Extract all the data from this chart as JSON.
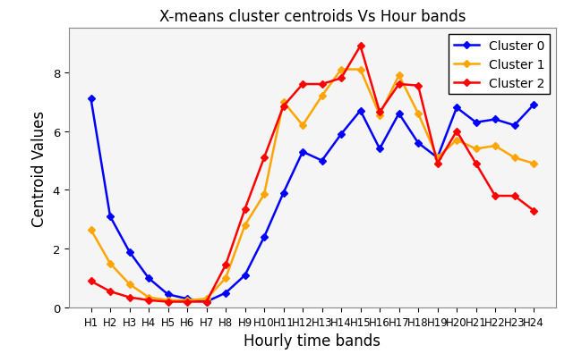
{
  "title": "X-means cluster centroids Vs Hour bands",
  "xlabel": "Hourly time bands",
  "ylabel": "Centroid Values",
  "x_labels": [
    "H1",
    "H2",
    "H3",
    "H4",
    "H5",
    "H6",
    "H7",
    "H8",
    "H9",
    "H10",
    "H11",
    "H12",
    "H13",
    "H14",
    "H15",
    "H16",
    "H17",
    "H18",
    "H19",
    "H20",
    "H21",
    "H22",
    "H23",
    "H24"
  ],
  "cluster0": [
    7.1,
    3.1,
    1.9,
    1.0,
    0.45,
    0.3,
    0.2,
    0.5,
    1.1,
    2.4,
    3.9,
    5.3,
    5.0,
    5.9,
    6.7,
    5.4,
    6.6,
    5.6,
    5.1,
    6.8,
    6.3,
    6.4,
    6.2,
    6.9
  ],
  "cluster1": [
    2.65,
    1.5,
    0.8,
    0.35,
    0.25,
    0.25,
    0.3,
    1.0,
    2.8,
    3.85,
    7.0,
    6.2,
    7.2,
    8.1,
    8.1,
    6.55,
    7.9,
    6.6,
    5.1,
    5.7,
    5.4,
    5.5,
    5.1,
    4.9
  ],
  "cluster2": [
    0.9,
    0.55,
    0.35,
    0.25,
    0.2,
    0.2,
    0.2,
    1.45,
    3.35,
    5.1,
    6.85,
    7.6,
    7.6,
    7.8,
    8.9,
    6.65,
    7.6,
    7.55,
    4.9,
    6.0,
    4.9,
    3.8,
    3.8,
    3.3
  ],
  "color0": "#0000ff",
  "color1": "#ffa500",
  "color2": "#ff0000",
  "ylim": [
    0,
    9.5
  ],
  "yticks": [
    0,
    2,
    4,
    6,
    8
  ],
  "figsize": [
    6.4,
    4.06
  ],
  "dpi": 100,
  "title_fontsize": 12,
  "axis_label_fontsize": 12,
  "tick_fontsize": 8.5,
  "legend_fontsize": 10,
  "linewidth": 1.8,
  "markersize": 4
}
